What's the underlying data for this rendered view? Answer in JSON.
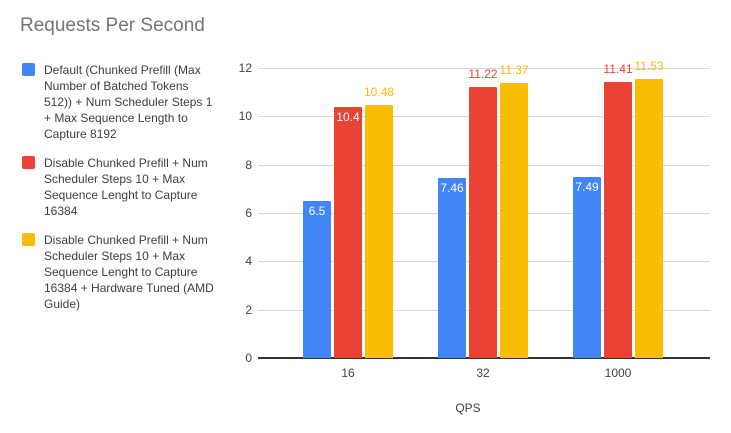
{
  "title": "Requests Per Second",
  "colors": {
    "series_blue": "#4285F4",
    "series_red": "#EA4335",
    "series_yellow": "#FBBC04",
    "title_text": "#757575",
    "axis_text": "#424242",
    "legend_text": "#3c4043",
    "gridline": "#d9d9d9",
    "baseline": "#333333",
    "inside_label": "#ffffff"
  },
  "chart_data": {
    "type": "bar",
    "title": "Requests Per Second",
    "xlabel": "QPS",
    "ylabel": "",
    "categories": [
      "16",
      "32",
      "1000"
    ],
    "series": [
      {
        "name": "Default (Chunked Prefill (Max Number of Batched Tokens 512)) + Num Scheduler Steps 1 + Max Sequence Length to Capture 8192",
        "color": "#4285F4",
        "values": [
          6.5,
          7.46,
          7.49
        ],
        "data_labels": [
          "6.5",
          "7.46",
          "7.49"
        ],
        "label_placement": [
          "inside",
          "inside",
          "inside"
        ]
      },
      {
        "name": "Disable Chunked Prefill + Num Scheduler Steps 10 + Max Sequence Lenght to Capture 16384",
        "color": "#EA4335",
        "values": [
          10.4,
          11.22,
          11.41
        ],
        "data_labels": [
          "10.4",
          "11.22",
          "11.41"
        ],
        "label_placement": [
          "inside",
          "above",
          "above"
        ]
      },
      {
        "name": "Disable Chunked Prefill + Num Scheduler Steps 10 + Max Sequence Lenght to Capture 16384 + Hardware Tuned (AMD Guide)",
        "color": "#FBBC04",
        "values": [
          10.48,
          11.37,
          11.53
        ],
        "data_labels": [
          "10.48",
          "11.37",
          "11.53"
        ],
        "label_placement": [
          "above",
          "above",
          "above"
        ]
      }
    ],
    "ylim": [
      0,
      12
    ],
    "yticks": [
      0,
      2,
      4,
      6,
      8,
      10,
      12
    ],
    "grid": true,
    "legend_position": "left"
  }
}
